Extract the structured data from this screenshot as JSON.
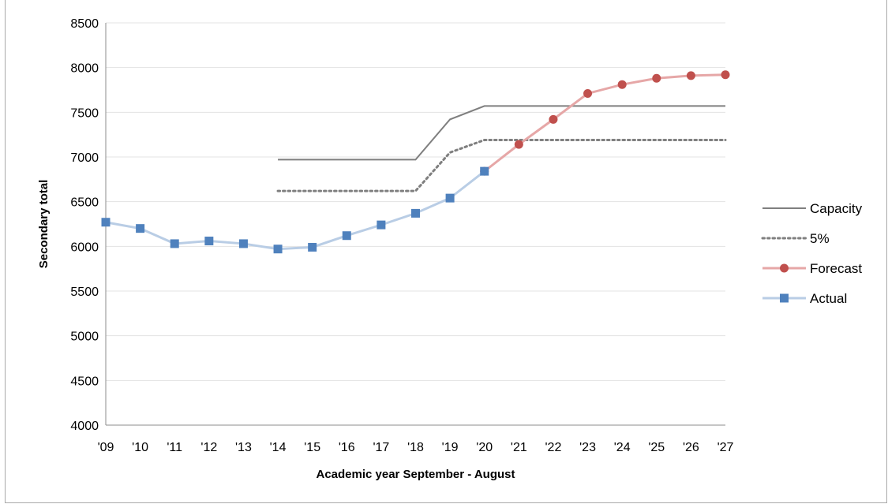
{
  "chart_data": {
    "type": "line",
    "title": "",
    "xlabel": "Academic year September - August",
    "ylabel": "Secondary total",
    "categories": [
      "'09",
      "'10",
      "'11",
      "'12",
      "'13",
      "'14",
      "'15",
      "'16",
      "'17",
      "'18",
      "'19",
      "'20",
      "'21",
      "'22",
      "'23",
      "'24",
      "'25",
      "'26",
      "'27"
    ],
    "ylim": [
      4000,
      8500
    ],
    "yticks": [
      4000,
      4500,
      5000,
      5500,
      6000,
      6500,
      7000,
      7500,
      8000,
      8500
    ],
    "grid": "horizontal",
    "legend_position": "right",
    "series": [
      {
        "name": "Capacity",
        "color": "#7f7f7f",
        "style": "solid",
        "marker": "none",
        "values": [
          null,
          null,
          null,
          null,
          null,
          6970,
          6970,
          6970,
          6970,
          6970,
          7420,
          7570,
          7570,
          7570,
          7570,
          7570,
          7570,
          7570,
          7570
        ]
      },
      {
        "name": "5%",
        "color": "#7f7f7f",
        "style": "dotted",
        "marker": "none",
        "values": [
          null,
          null,
          null,
          null,
          null,
          6620,
          6620,
          6620,
          6620,
          6620,
          7050,
          7190,
          7190,
          7190,
          7190,
          7190,
          7190,
          7190,
          7190
        ]
      },
      {
        "name": "Forecast",
        "color": "#e6a7a7",
        "marker_color": "#c0504d",
        "style": "solid",
        "marker": "circle",
        "values": [
          null,
          null,
          null,
          null,
          null,
          null,
          null,
          null,
          null,
          null,
          null,
          6840,
          7140,
          7420,
          7710,
          7810,
          7880,
          7910,
          7920
        ]
      },
      {
        "name": "Actual",
        "color": "#b9cde5",
        "marker_color": "#4f81bd",
        "style": "solid",
        "marker": "square",
        "values": [
          6270,
          6200,
          6030,
          6060,
          6030,
          5970,
          5990,
          6120,
          6240,
          6370,
          6540,
          6840,
          null,
          null,
          null,
          null,
          null,
          null,
          null
        ]
      }
    ]
  }
}
